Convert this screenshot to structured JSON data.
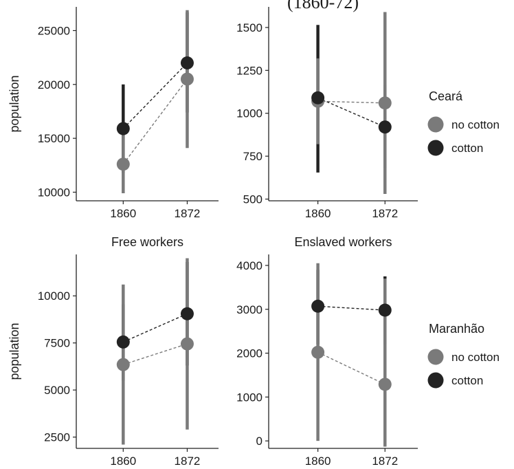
{
  "top_fragment": "(1860-72)",
  "colors": {
    "no_cotton": "#7a7a7a",
    "cotton": "#232323"
  },
  "legends": [
    {
      "title": "Ceará",
      "items": [
        {
          "key": "no_cotton",
          "label": "no cotton"
        },
        {
          "key": "cotton",
          "label": "cotton"
        }
      ]
    },
    {
      "title": "Maranhão",
      "items": [
        {
          "key": "no_cotton",
          "label": "no cotton"
        },
        {
          "key": "cotton",
          "label": "cotton"
        }
      ]
    }
  ],
  "chart_data": [
    {
      "type": "scatter",
      "title": "",
      "xlabel": "",
      "ylabel": "population",
      "categories": [
        "1860",
        "1872"
      ],
      "ylim": [
        9200,
        27200
      ],
      "yticks": [
        10000,
        15000,
        20000,
        25000
      ],
      "series": [
        {
          "name": "no cotton",
          "key": "no_cotton",
          "values": [
            12600,
            20500
          ],
          "lower": [
            9900,
            14100
          ],
          "upper": [
            15300,
            26900
          ]
        },
        {
          "name": "cotton",
          "key": "cotton",
          "values": [
            15900,
            22000
          ],
          "lower": [
            11800,
            17400
          ],
          "upper": [
            20000,
            26700
          ]
        }
      ]
    },
    {
      "type": "scatter",
      "title": "",
      "xlabel": "",
      "ylabel": "",
      "categories": [
        "1860",
        "1872"
      ],
      "ylim": [
        490,
        1620
      ],
      "yticks": [
        500,
        750,
        1000,
        1250,
        1500
      ],
      "series": [
        {
          "name": "no cotton",
          "key": "no_cotton",
          "values": [
            1070,
            1060
          ],
          "lower": [
            820,
            530
          ],
          "upper": [
            1320,
            1590
          ]
        },
        {
          "name": "cotton",
          "key": "cotton",
          "values": [
            1090,
            920
          ],
          "lower": [
            655,
            680
          ],
          "upper": [
            1515,
            1165
          ]
        }
      ]
    },
    {
      "type": "scatter",
      "title": "Free workers",
      "xlabel": "",
      "ylabel": "population",
      "categories": [
        "1860",
        "1872"
      ],
      "ylim": [
        1900,
        12200
      ],
      "yticks": [
        2500,
        5000,
        7500,
        10000
      ],
      "series": [
        {
          "name": "no cotton",
          "key": "no_cotton",
          "values": [
            6350,
            7450
          ],
          "lower": [
            2100,
            2900
          ],
          "upper": [
            10600,
            12000
          ]
        },
        {
          "name": "cotton",
          "key": "cotton",
          "values": [
            7550,
            9050
          ],
          "lower": [
            5500,
            6300
          ],
          "upper": [
            9550,
            11800
          ]
        }
      ]
    },
    {
      "type": "scatter",
      "title": "Enslaved workers",
      "xlabel": "",
      "ylabel": "",
      "categories": [
        "1860",
        "1872"
      ],
      "ylim": [
        -170,
        4250
      ],
      "yticks": [
        0,
        1000,
        2000,
        3000,
        4000
      ],
      "series": [
        {
          "name": "no cotton",
          "key": "no_cotton",
          "values": [
            2020,
            1290
          ],
          "lower": [
            0,
            -130
          ],
          "upper": [
            4050,
            3700
          ]
        },
        {
          "name": "cotton",
          "key": "cotton",
          "values": [
            3070,
            2980
          ],
          "lower": [
            2200,
            2200
          ],
          "upper": [
            3900,
            3750
          ]
        }
      ]
    }
  ]
}
